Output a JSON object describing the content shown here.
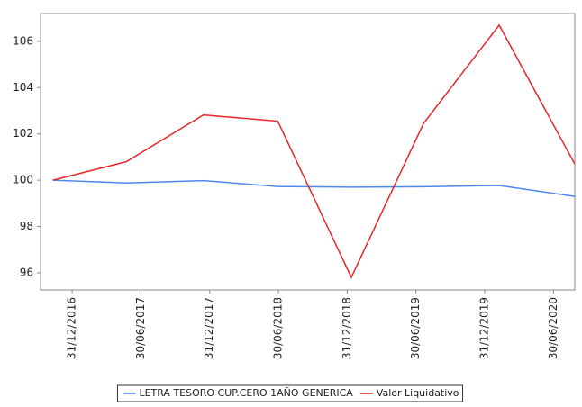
{
  "chart_data": {
    "type": "line",
    "x": [
      -0.28,
      0.79,
      1.91,
      2.99,
      4.06,
      5.11,
      6.21,
      7.31
    ],
    "series": [
      {
        "name": "LETRA TESORO CUP.CERO 1AÑO GENERICA",
        "color": "#4f86f0",
        "values": [
          100,
          99.88,
          99.98,
          99.73,
          99.7,
          99.72,
          99.77,
          99.3
        ]
      },
      {
        "name": "Valor Liquidativo",
        "color": "#e8262a",
        "values": [
          100,
          100.8,
          102.82,
          102.55,
          95.8,
          102.45,
          106.7,
          100.7
        ]
      }
    ],
    "xlim": [
      -0.46,
      7.31
    ],
    "xticks": [
      {
        "value": 0,
        "label": "31/12/2016"
      },
      {
        "value": 1,
        "label": "30/06/2017"
      },
      {
        "value": 2,
        "label": "31/12/2017"
      },
      {
        "value": 3,
        "label": "30/06/2018"
      },
      {
        "value": 4,
        "label": "31/12/2018"
      },
      {
        "value": 5,
        "label": "30/06/2019"
      },
      {
        "value": 6,
        "label": "31/12/2019"
      },
      {
        "value": 7,
        "label": "30/06/2020"
      }
    ],
    "ylim": [
      95.26,
      107.2
    ],
    "yticks": [
      96,
      98,
      100,
      102,
      104,
      106
    ],
    "grid": false,
    "legend": "bottom"
  }
}
